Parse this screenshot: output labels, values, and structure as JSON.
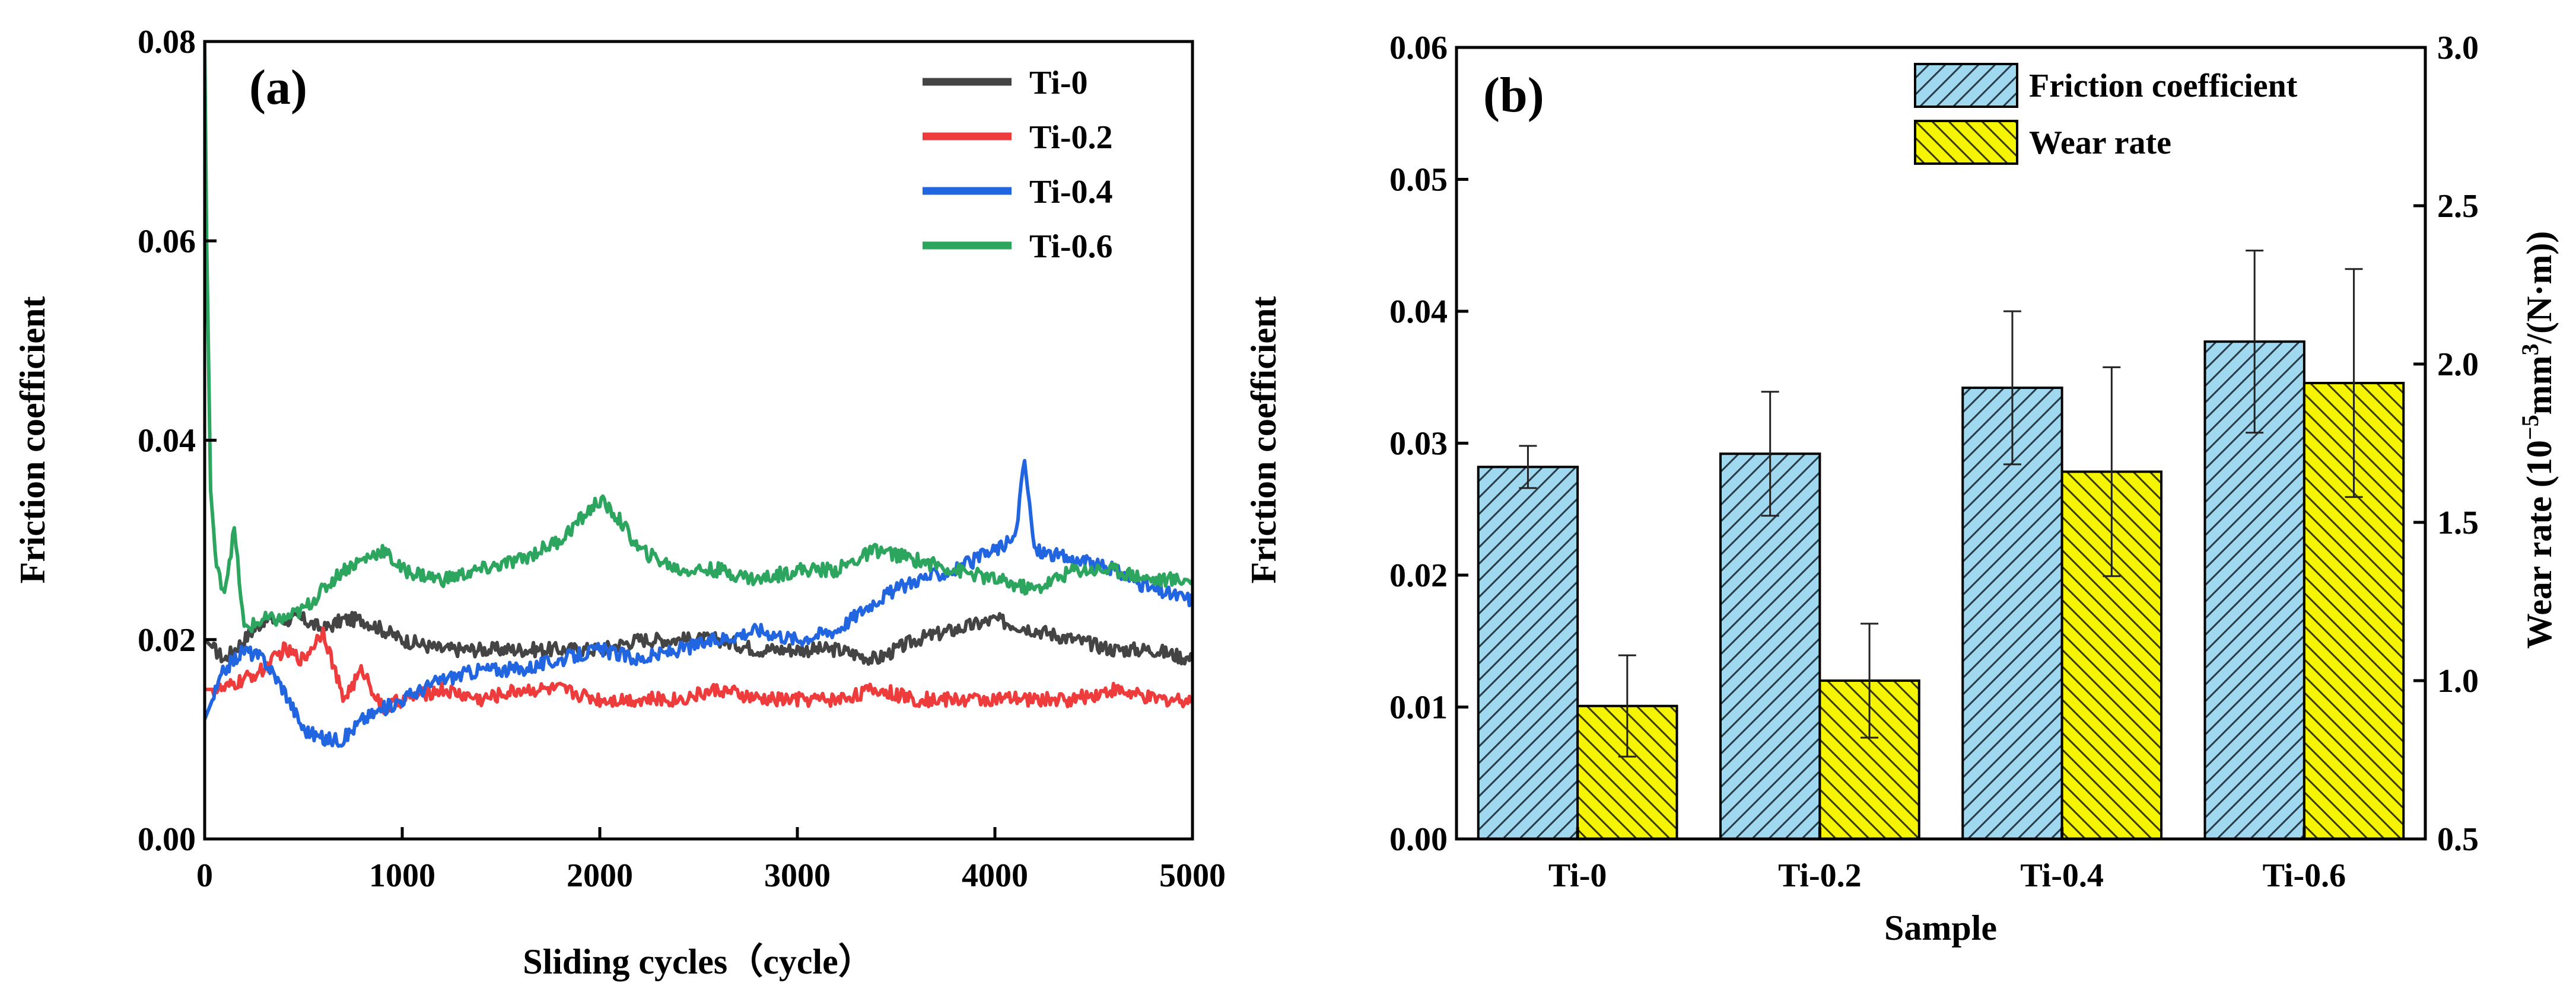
{
  "colors": {
    "Ti-0": "#444444",
    "Ti-0.2": "#ee3c3c",
    "Ti-0.4": "#2265e0",
    "Ti-0.6": "#2ca55e",
    "friction_bar": "#9fd8ef",
    "wear_bar": "#f5f500",
    "axis": "#000000"
  },
  "chart_data": [
    {
      "type": "line",
      "panel_label": "(a)",
      "xlabel": "Sliding cycles（cycle）",
      "ylabel": "Friction coefficient",
      "xlim": [
        0,
        5000
      ],
      "ylim": [
        0,
        0.08
      ],
      "xticks": [
        "0",
        "1000",
        "2000",
        "3000",
        "4000",
        "5000"
      ],
      "yticks": [
        "0.00",
        "0.02",
        "0.04",
        "0.06",
        "0.08"
      ],
      "legend_position": "top-right",
      "series": [
        {
          "name": "Ti-0",
          "x": [
            0,
            100,
            200,
            300,
            400,
            500,
            600,
            700,
            800,
            900,
            1000,
            1200,
            1400,
            1600,
            1800,
            2000,
            2200,
            2400,
            2600,
            2800,
            3000,
            3200,
            3400,
            3600,
            3800,
            4000,
            4200,
            4400,
            4600,
            4800,
            5000
          ],
          "y": [
            0.02,
            0.018,
            0.02,
            0.022,
            0.022,
            0.022,
            0.021,
            0.022,
            0.022,
            0.021,
            0.02,
            0.019,
            0.019,
            0.019,
            0.019,
            0.019,
            0.02,
            0.02,
            0.02,
            0.019,
            0.019,
            0.019,
            0.018,
            0.02,
            0.021,
            0.022,
            0.021,
            0.02,
            0.019,
            0.019,
            0.018
          ]
        },
        {
          "name": "Ti-0.2",
          "x": [
            0,
            100,
            200,
            300,
            400,
            500,
            600,
            700,
            800,
            900,
            1000,
            1200,
            1400,
            1600,
            1800,
            2000,
            2200,
            2400,
            2600,
            2800,
            3000,
            3200,
            3400,
            3600,
            3800,
            4000,
            4200,
            4400,
            4600,
            4800,
            5000
          ],
          "y": [
            0.015,
            0.015,
            0.016,
            0.017,
            0.019,
            0.018,
            0.021,
            0.014,
            0.017,
            0.013,
            0.014,
            0.015,
            0.014,
            0.015,
            0.015,
            0.014,
            0.014,
            0.014,
            0.015,
            0.014,
            0.014,
            0.014,
            0.015,
            0.014,
            0.014,
            0.014,
            0.014,
            0.014,
            0.015,
            0.014,
            0.014
          ]
        },
        {
          "name": "Ti-0.4",
          "x": [
            0,
            100,
            200,
            300,
            400,
            500,
            600,
            700,
            800,
            900,
            1000,
            1200,
            1400,
            1600,
            1800,
            2000,
            2200,
            2400,
            2600,
            2800,
            3000,
            3200,
            3400,
            3600,
            3800,
            4000,
            4100,
            4150,
            4200,
            4400,
            4600,
            4800,
            5000
          ],
          "y": [
            0.012,
            0.017,
            0.019,
            0.018,
            0.015,
            0.011,
            0.01,
            0.01,
            0.012,
            0.013,
            0.014,
            0.016,
            0.017,
            0.017,
            0.018,
            0.019,
            0.018,
            0.019,
            0.02,
            0.021,
            0.02,
            0.021,
            0.024,
            0.026,
            0.027,
            0.029,
            0.03,
            0.038,
            0.029,
            0.028,
            0.027,
            0.025,
            0.024
          ]
        },
        {
          "name": "Ti-0.6",
          "x": [
            0,
            10,
            30,
            60,
            100,
            150,
            200,
            300,
            400,
            500,
            600,
            700,
            800,
            900,
            1000,
            1200,
            1400,
            1600,
            1800,
            2000,
            2100,
            2200,
            2400,
            2600,
            2800,
            3000,
            3200,
            3400,
            3600,
            3800,
            4000,
            4200,
            4400,
            4600,
            4800,
            5000
          ],
          "y": [
            0.08,
            0.06,
            0.035,
            0.027,
            0.025,
            0.031,
            0.021,
            0.022,
            0.022,
            0.023,
            0.025,
            0.027,
            0.028,
            0.029,
            0.027,
            0.026,
            0.027,
            0.028,
            0.03,
            0.034,
            0.032,
            0.029,
            0.027,
            0.027,
            0.026,
            0.027,
            0.027,
            0.029,
            0.028,
            0.027,
            0.026,
            0.025,
            0.027,
            0.027,
            0.026,
            0.026
          ]
        }
      ]
    },
    {
      "type": "bar",
      "panel_label": "(b)",
      "xlabel": "Sample",
      "ylabel": "Friction coefficient",
      "ylabel_right_parts": [
        "Wear rate (10",
        "−5",
        "mm",
        "3",
        "/(N·m))"
      ],
      "categories": [
        "Ti-0",
        "Ti-0.2",
        "Ti-0.4",
        "Ti-0.6"
      ],
      "ylim": [
        0,
        0.06
      ],
      "ylim_right": [
        0.5,
        3.0
      ],
      "yticks": [
        "0.00",
        "0.01",
        "0.02",
        "0.03",
        "0.04",
        "0.05",
        "0.06"
      ],
      "yticks_right": [
        "0.5",
        "1.0",
        "1.5",
        "2.0",
        "2.5",
        "3.0"
      ],
      "legend_position": "top-right",
      "series": [
        {
          "name": "Friction coefficient",
          "axis": "left",
          "hatch": "//",
          "values": [
            0.0282,
            0.0292,
            0.0342,
            0.0377
          ],
          "error": [
            0.0016,
            0.0047,
            0.0058,
            0.0069
          ]
        },
        {
          "name": "Wear rate",
          "axis": "right",
          "hatch": "\\\\",
          "values": [
            0.92,
            1.0,
            1.66,
            1.94
          ],
          "error": [
            0.16,
            0.18,
            0.33,
            0.36
          ]
        }
      ]
    }
  ]
}
